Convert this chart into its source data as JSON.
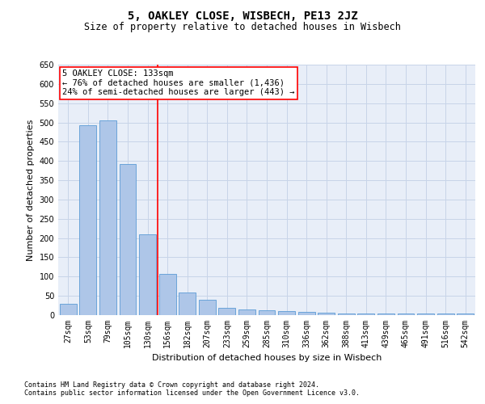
{
  "title": "5, OAKLEY CLOSE, WISBECH, PE13 2JZ",
  "subtitle": "Size of property relative to detached houses in Wisbech",
  "xlabel": "Distribution of detached houses by size in Wisbech",
  "ylabel": "Number of detached properties",
  "categories": [
    "27sqm",
    "53sqm",
    "79sqm",
    "105sqm",
    "130sqm",
    "156sqm",
    "182sqm",
    "207sqm",
    "233sqm",
    "259sqm",
    "285sqm",
    "310sqm",
    "336sqm",
    "362sqm",
    "388sqm",
    "413sqm",
    "439sqm",
    "465sqm",
    "491sqm",
    "516sqm",
    "542sqm"
  ],
  "values": [
    30,
    493,
    505,
    392,
    210,
    107,
    59,
    40,
    18,
    15,
    12,
    10,
    8,
    6,
    5,
    5,
    5,
    5,
    4,
    5,
    4
  ],
  "bar_color": "#aec6e8",
  "bar_edge_color": "#5b9bd5",
  "red_line_x": 4.5,
  "annotation_title": "5 OAKLEY CLOSE: 133sqm",
  "annotation_line1": "← 76% of detached houses are smaller (1,436)",
  "annotation_line2": "24% of semi-detached houses are larger (443) →",
  "ylim": [
    0,
    650
  ],
  "yticks": [
    0,
    50,
    100,
    150,
    200,
    250,
    300,
    350,
    400,
    450,
    500,
    550,
    600,
    650
  ],
  "footnote1": "Contains HM Land Registry data © Crown copyright and database right 2024.",
  "footnote2": "Contains public sector information licensed under the Open Government Licence v3.0.",
  "background_color": "#ffffff",
  "plot_bg_color": "#e8eef8",
  "grid_color": "#c8d4e8",
  "title_fontsize": 10,
  "subtitle_fontsize": 8.5,
  "axis_label_fontsize": 8,
  "tick_fontsize": 7,
  "annotation_fontsize": 7.5,
  "footnote_fontsize": 6
}
